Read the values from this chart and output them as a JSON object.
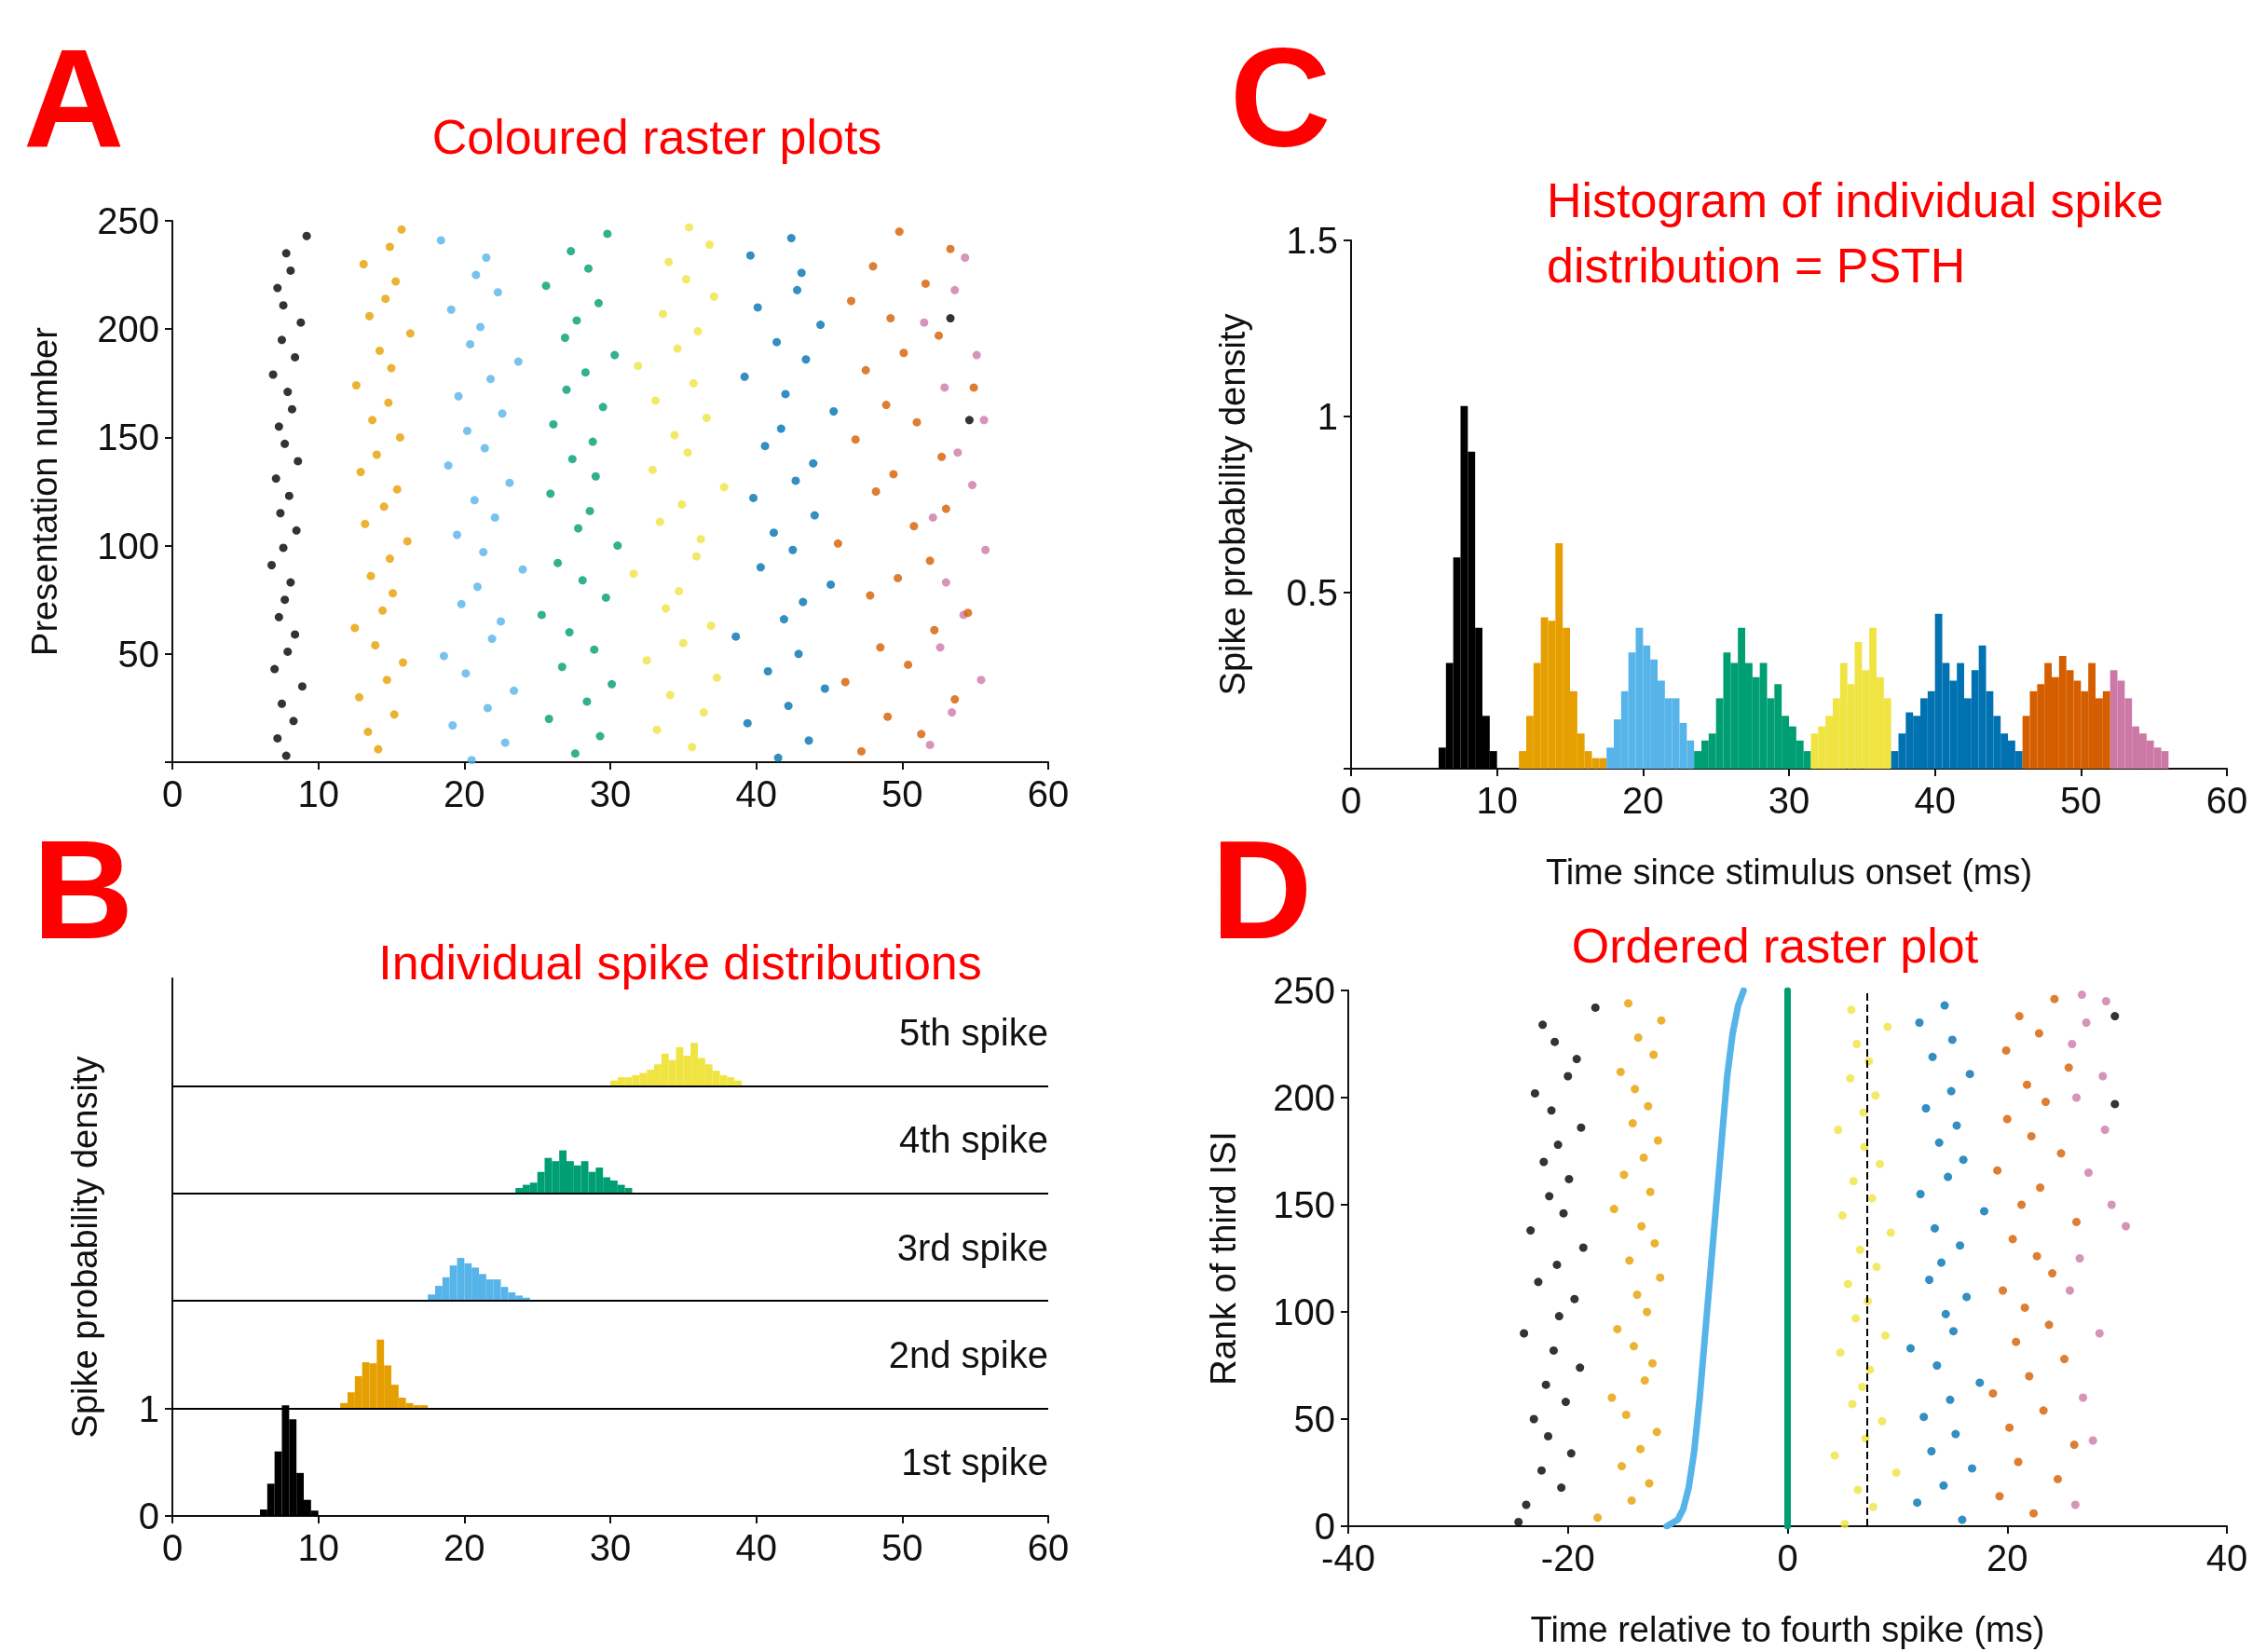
{
  "chart_data": [
    {
      "type": "scatter",
      "title": "Coloured raster plots",
      "ylabel": "Presentation number",
      "annotations": [
        "A"
      ],
      "marker": "circle",
      "xlim": [
        0,
        60
      ],
      "ylim": [
        0,
        250
      ],
      "xticks": [
        0,
        10,
        20,
        30,
        40,
        50,
        60
      ],
      "yticks": [
        {
          "value": 0,
          "label": null
        },
        50,
        100,
        150,
        200,
        250
      ],
      "series": [
        {
          "color": "#000000",
          "x": [
            7.8,
            7.2,
            8.3,
            7.5,
            8.9,
            7.0,
            7.9,
            8.4,
            7.3,
            7.7,
            8.1,
            6.8,
            7.6,
            8.5,
            7.4,
            8.0,
            7.1,
            8.6,
            7.7,
            7.3,
            8.2,
            7.9,
            6.9,
            8.4,
            7.5,
            8.8,
            7.6,
            7.2,
            8.1,
            7.8,
            9.2
          ],
          "values": [
            3,
            11,
            19,
            27,
            35,
            43,
            51,
            59,
            67,
            75,
            83,
            91,
            99,
            107,
            115,
            123,
            131,
            139,
            147,
            155,
            163,
            171,
            179,
            187,
            195,
            203,
            211,
            219,
            227,
            235,
            243
          ]
        },
        {
          "color": "#e69f00",
          "x": [
            14.1,
            13.4,
            15.2,
            12.8,
            14.7,
            15.8,
            13.9,
            12.5,
            14.4,
            15.1,
            13.6,
            14.9,
            16.1,
            13.2,
            14.5,
            15.4,
            12.9,
            14.0,
            15.6,
            13.7,
            14.8,
            12.6,
            15.0,
            14.2,
            16.3,
            13.5,
            14.6,
            15.3,
            13.1,
            14.9,
            15.7
          ],
          "values": [
            6,
            14,
            22,
            30,
            38,
            46,
            54,
            62,
            70,
            78,
            86,
            94,
            102,
            110,
            118,
            126,
            134,
            142,
            150,
            158,
            166,
            174,
            182,
            190,
            198,
            206,
            214,
            222,
            230,
            238,
            246
          ]
        },
        {
          "color": "#56b4e9",
          "x": [
            20.5,
            22.8,
            19.2,
            21.6,
            23.4,
            20.1,
            18.6,
            21.9,
            22.5,
            19.8,
            20.9,
            24.0,
            21.3,
            19.5,
            22.1,
            20.7,
            23.1,
            18.9,
            21.4,
            20.2,
            22.6,
            19.6,
            21.8,
            23.7,
            20.4,
            21.1,
            19.1,
            22.3,
            20.8,
            21.5,
            18.4
          ],
          "values": [
            1,
            9,
            17,
            25,
            33,
            41,
            49,
            57,
            65,
            73,
            81,
            89,
            97,
            105,
            113,
            121,
            129,
            137,
            145,
            153,
            161,
            169,
            177,
            185,
            193,
            201,
            209,
            217,
            225,
            233,
            241
          ]
        },
        {
          "color": "#009e73",
          "x": [
            27.6,
            29.3,
            25.8,
            28.4,
            30.1,
            26.7,
            28.9,
            27.2,
            25.3,
            29.7,
            28.1,
            26.4,
            30.5,
            27.8,
            28.6,
            25.9,
            29.0,
            27.4,
            28.8,
            26.1,
            29.5,
            27.0,
            28.3,
            30.3,
            26.9,
            27.7,
            29.2,
            25.6,
            28.5,
            27.3,
            29.8
          ],
          "values": [
            4,
            12,
            20,
            28,
            36,
            44,
            52,
            60,
            68,
            76,
            84,
            92,
            100,
            108,
            116,
            124,
            132,
            140,
            148,
            156,
            164,
            172,
            180,
            188,
            196,
            204,
            212,
            220,
            228,
            236,
            244
          ]
        },
        {
          "color": "#f0e442",
          "x": [
            35.6,
            33.2,
            36.4,
            34.1,
            37.3,
            32.5,
            35.0,
            36.9,
            33.8,
            34.7,
            31.6,
            35.9,
            36.2,
            33.4,
            34.9,
            37.8,
            32.9,
            35.3,
            34.4,
            36.6,
            33.1,
            35.7,
            31.9,
            34.6,
            36.0,
            33.6,
            37.1,
            35.2,
            34.0,
            36.8,
            35.4
          ],
          "values": [
            7,
            15,
            23,
            31,
            39,
            47,
            55,
            63,
            71,
            79,
            87,
            95,
            103,
            111,
            119,
            127,
            135,
            143,
            151,
            159,
            167,
            175,
            183,
            191,
            199,
            207,
            215,
            223,
            231,
            239,
            247
          ]
        },
        {
          "color": "#0072b2",
          "x": [
            41.5,
            43.6,
            39.4,
            42.2,
            44.7,
            40.8,
            42.9,
            38.6,
            41.9,
            43.2,
            45.1,
            40.3,
            42.5,
            41.2,
            44.0,
            39.8,
            42.7,
            43.9,
            40.6,
            41.7,
            45.3,
            42.0,
            39.2,
            43.4,
            41.4,
            44.4,
            40.1,
            42.8,
            43.1,
            39.6,
            42.4
          ],
          "values": [
            2,
            10,
            18,
            26,
            34,
            42,
            50,
            58,
            66,
            74,
            82,
            90,
            98,
            106,
            114,
            122,
            130,
            138,
            146,
            154,
            162,
            170,
            178,
            186,
            194,
            202,
            210,
            218,
            226,
            234,
            242
          ]
        },
        {
          "color": "#cc79a7",
          "x": [
            51.9,
            53.4,
            55.4,
            52.6,
            54.2,
            53.0,
            55.7,
            52.1,
            54.8,
            53.8,
            55.6,
            52.9,
            55.1,
            51.5,
            53.6,
            54.3
          ],
          "values": [
            8,
            23,
            38,
            53,
            68,
            83,
            98,
            113,
            128,
            143,
            158,
            173,
            188,
            203,
            218,
            233
          ]
        },
        {
          "color": "#d55e00",
          "x": [
            47.2,
            51.3,
            49.0,
            53.6,
            46.1,
            50.4,
            48.5,
            52.2,
            54.5,
            47.8,
            49.7,
            51.9,
            45.6,
            50.8,
            53.0,
            48.2,
            49.4,
            52.7,
            46.8,
            51.0,
            48.9,
            54.9,
            47.5,
            50.1,
            52.5,
            49.2,
            46.5,
            51.6,
            48.0,
            53.3,
            49.8
          ],
          "values": [
            5,
            13,
            21,
            29,
            37,
            45,
            53,
            61,
            69,
            77,
            85,
            93,
            101,
            109,
            117,
            125,
            133,
            141,
            149,
            157,
            165,
            173,
            181,
            189,
            197,
            205,
            213,
            221,
            229,
            237,
            245
          ]
        },
        {
          "color": "#000000",
          "x": [
            53.3,
            54.6
          ],
          "values": [
            205,
            158
          ]
        }
      ]
    },
    {
      "type": "bar",
      "title": "Individual spike distributions",
      "ylabel": "Spike probability density",
      "annotations": [
        "B"
      ],
      "xlim": [
        0,
        60
      ],
      "ylim": [
        0,
        5
      ],
      "xticks": [
        0,
        10,
        20,
        30,
        40,
        50,
        60
      ],
      "yticks": [
        0,
        1
      ],
      "ref_lines": [
        {
          "axis": "y",
          "value": 1,
          "color": "#000000"
        },
        {
          "axis": "y",
          "value": 2,
          "color": "#000000"
        },
        {
          "axis": "y",
          "value": 3,
          "color": "#000000"
        },
        {
          "axis": "y",
          "value": 4,
          "color": "#000000"
        }
      ],
      "series": [
        {
          "name": "1st spike",
          "color": "#000000",
          "x": [
            6.25,
            6.75,
            7.25,
            7.75,
            8.25,
            8.75,
            9.25,
            9.75
          ],
          "values": [
            0.06,
            0.3,
            0.6,
            1.03,
            0.9,
            0.4,
            0.15,
            0.05
          ],
          "base": [
            0,
            0,
            0,
            0,
            0,
            0,
            0,
            0
          ]
        },
        {
          "name": "2nd spike",
          "color": "#e69f00",
          "x": [
            11.75,
            12.25,
            12.75,
            13.25,
            13.75,
            14.25,
            14.75,
            15.25,
            15.75,
            16.25,
            16.75,
            17.25
          ],
          "values": [
            0.05,
            0.15,
            0.3,
            0.43,
            0.42,
            0.64,
            0.4,
            0.22,
            0.1,
            0.05,
            0.03,
            0.03
          ],
          "base": [
            1,
            1,
            1,
            1,
            1,
            1,
            1,
            1,
            1,
            1,
            1,
            1
          ]
        },
        {
          "name": "3rd spike",
          "color": "#56b4e9",
          "x": [
            17.75,
            18.25,
            18.75,
            19.25,
            19.75,
            20.25,
            20.75,
            21.25,
            21.75,
            22.25,
            22.75,
            23.25,
            23.75,
            24.25
          ],
          "values": [
            0.06,
            0.14,
            0.22,
            0.33,
            0.4,
            0.35,
            0.31,
            0.25,
            0.2,
            0.2,
            0.13,
            0.08,
            0.05,
            0.03
          ],
          "base": [
            2,
            2,
            2,
            2,
            2,
            2,
            2,
            2,
            2,
            2,
            2,
            2,
            2,
            2
          ]
        },
        {
          "name": "4th spike",
          "color": "#009e73",
          "x": [
            23.75,
            24.25,
            24.75,
            25.25,
            25.75,
            26.25,
            26.75,
            27.25,
            27.75,
            28.25,
            28.75,
            29.25,
            29.75,
            30.25,
            30.75,
            31.25
          ],
          "values": [
            0.05,
            0.08,
            0.1,
            0.2,
            0.33,
            0.3,
            0.4,
            0.3,
            0.26,
            0.3,
            0.2,
            0.24,
            0.15,
            0.12,
            0.08,
            0.05
          ],
          "base": [
            3,
            3,
            3,
            3,
            3,
            3,
            3,
            3,
            3,
            3,
            3,
            3,
            3,
            3,
            3,
            3
          ]
        },
        {
          "name": "5th spike",
          "color": "#f0e442",
          "x": [
            30.25,
            30.75,
            31.25,
            31.75,
            32.25,
            32.75,
            33.25,
            33.75,
            34.25,
            34.75,
            35.25,
            35.75,
            36.25,
            36.75,
            37.25,
            37.75,
            38.25,
            38.75
          ],
          "values": [
            0.05,
            0.08,
            0.08,
            0.1,
            0.12,
            0.15,
            0.2,
            0.3,
            0.24,
            0.36,
            0.28,
            0.4,
            0.26,
            0.2,
            0.14,
            0.1,
            0.08,
            0.05
          ],
          "base": [
            4,
            4,
            4,
            4,
            4,
            4,
            4,
            4,
            4,
            4,
            4,
            4,
            4,
            4,
            4,
            4,
            4,
            4
          ]
        }
      ]
    },
    {
      "type": "bar",
      "title": "Histogram of individual spike distribution = PSTH",
      "xlabel": "Time since stimulus onset (ms)",
      "ylabel": "Spike probability density",
      "annotations": [
        "C"
      ],
      "xlim": [
        0,
        60
      ],
      "ylim": [
        0,
        1.5
      ],
      "xticks": [
        0,
        10,
        20,
        30,
        40,
        50,
        60
      ],
      "yticks": [
        {
          "value": 0,
          "label": null
        },
        0.5,
        1,
        1.5
      ],
      "series": [
        {
          "color": "#000000",
          "x": [
            6.25,
            6.75,
            7.25,
            7.75,
            8.25,
            8.75,
            9.25,
            9.75
          ],
          "values": [
            0.06,
            0.3,
            0.6,
            1.03,
            0.9,
            0.4,
            0.15,
            0.05
          ]
        },
        {
          "color": "#e69f00",
          "x": [
            11.75,
            12.25,
            12.75,
            13.25,
            13.75,
            14.25,
            14.75,
            15.25,
            15.75,
            16.25,
            16.75,
            17.25
          ],
          "values": [
            0.05,
            0.15,
            0.3,
            0.43,
            0.42,
            0.64,
            0.4,
            0.22,
            0.1,
            0.05,
            0.03,
            0.03
          ]
        },
        {
          "color": "#56b4e9",
          "x": [
            17.75,
            18.25,
            18.75,
            19.25,
            19.75,
            20.25,
            20.75,
            21.25,
            21.75,
            22.25,
            22.75,
            23.25
          ],
          "values": [
            0.06,
            0.14,
            0.22,
            0.33,
            0.4,
            0.35,
            0.31,
            0.25,
            0.2,
            0.2,
            0.13,
            0.08
          ]
        },
        {
          "color": "#009e73",
          "x": [
            23.75,
            24.25,
            24.75,
            25.25,
            25.75,
            26.25,
            26.75,
            27.25,
            27.75,
            28.25,
            28.75,
            29.25,
            29.75,
            30.25,
            30.75,
            31.25
          ],
          "values": [
            0.05,
            0.08,
            0.1,
            0.2,
            0.33,
            0.3,
            0.4,
            0.3,
            0.26,
            0.3,
            0.2,
            0.24,
            0.15,
            0.12,
            0.08,
            0.05
          ]
        },
        {
          "color": "#f0e442",
          "x": [
            31.75,
            32.25,
            32.75,
            33.25,
            33.75,
            34.25,
            34.75,
            35.25,
            35.75,
            36.25,
            36.75
          ],
          "values": [
            0.1,
            0.12,
            0.15,
            0.2,
            0.3,
            0.24,
            0.36,
            0.28,
            0.4,
            0.26,
            0.2
          ]
        },
        {
          "color": "#0072b2",
          "x": [
            37.25,
            37.75,
            38.25,
            38.75,
            39.25,
            39.75,
            40.25,
            40.75,
            41.25,
            41.75,
            42.25,
            42.75,
            43.25,
            43.75,
            44.25,
            44.75,
            45.25,
            45.75
          ],
          "values": [
            0.05,
            0.1,
            0.16,
            0.15,
            0.2,
            0.22,
            0.44,
            0.3,
            0.25,
            0.3,
            0.2,
            0.28,
            0.35,
            0.22,
            0.15,
            0.1,
            0.08,
            0.05
          ]
        },
        {
          "color": "#cc79a7",
          "x": [
            52.25,
            52.75,
            53.25,
            53.75,
            54.25,
            54.75,
            55.25,
            55.75
          ],
          "values": [
            0.28,
            0.25,
            0.2,
            0.12,
            0.1,
            0.08,
            0.06,
            0.05
          ]
        },
        {
          "color": "#d55e00",
          "x": [
            46.25,
            46.75,
            47.25,
            47.75,
            48.25,
            48.75,
            49.25,
            49.75,
            50.25,
            50.75,
            51.25,
            51.75
          ],
          "values": [
            0.15,
            0.22,
            0.24,
            0.3,
            0.26,
            0.32,
            0.28,
            0.25,
            0.22,
            0.3,
            0.2,
            0.22
          ]
        }
      ]
    },
    {
      "type": "scatter",
      "title": "Ordered raster plot",
      "xlabel": "Time relative to fourth spike (ms)",
      "ylabel": "Rank of third ISI",
      "annotations": [
        "D"
      ],
      "marker": "circle",
      "xlim": [
        -40,
        40
      ],
      "ylim": [
        0,
        250
      ],
      "xticks": [
        -40,
        -20,
        0,
        20,
        40
      ],
      "yticks": [
        0,
        50,
        100,
        150,
        200,
        250
      ],
      "ref_lines": [
        {
          "axis": "x",
          "value": 7.2,
          "color": "#000000",
          "line_style": "dashed"
        }
      ],
      "series": [
        {
          "color": "#000000",
          "x": [
            -24.5,
            -23.8,
            -20.6,
            -22.4,
            -19.7,
            -21.8,
            -23.1,
            -20.2,
            -22.0,
            -18.9,
            -21.3,
            -24.0,
            -20.8,
            -19.4,
            -22.7,
            -21.0,
            -18.6,
            -23.4,
            -20.4,
            -21.7,
            -19.9,
            -22.2,
            -20.9,
            -18.8,
            -21.5,
            -23.0,
            -20.0,
            -19.2,
            -21.2,
            -22.3,
            -17.5
          ],
          "values": [
            2,
            10,
            18,
            26,
            34,
            42,
            50,
            58,
            66,
            74,
            82,
            90,
            98,
            106,
            114,
            122,
            130,
            138,
            146,
            154,
            162,
            170,
            178,
            186,
            194,
            202,
            210,
            218,
            226,
            234,
            242
          ]
        },
        {
          "color": "#e69f00",
          "x": [
            -17.3,
            -14.2,
            -12.6,
            -15.1,
            -13.4,
            -11.9,
            -14.7,
            -16.0,
            -13.0,
            -12.3,
            -14.0,
            -15.5,
            -12.8,
            -13.7,
            -11.6,
            -14.4,
            -12.1,
            -13.3,
            -15.8,
            -12.5,
            -14.9,
            -13.1,
            -11.8,
            -14.1,
            -12.7,
            -13.9,
            -15.2,
            -12.2,
            -13.6,
            -11.5,
            -14.5
          ],
          "values": [
            4,
            12,
            20,
            28,
            36,
            44,
            52,
            60,
            68,
            76,
            84,
            92,
            100,
            108,
            116,
            124,
            132,
            140,
            148,
            156,
            164,
            172,
            180,
            188,
            196,
            204,
            212,
            220,
            228,
            236,
            244
          ]
        },
        {
          "type": "line",
          "marker": "none",
          "color": "#56b4e9",
          "x": [
            -11,
            -10,
            -9.5,
            -9,
            -8.5,
            -8,
            -7.5,
            -7,
            -6.5,
            -6,
            -5.5,
            -5,
            -4.5,
            -4
          ],
          "values": [
            0,
            3,
            8,
            18,
            35,
            60,
            90,
            120,
            150,
            180,
            210,
            230,
            243,
            250
          ]
        },
        {
          "type": "line",
          "marker": "none",
          "color": "#009e73",
          "x": [
            0,
            0
          ],
          "values": [
            0,
            250
          ]
        },
        {
          "color": "#f0e442",
          "x": [
            5.2,
            7.8,
            6.4,
            9.9,
            4.3,
            7.1,
            8.6,
            5.9,
            6.8,
            7.5,
            4.8,
            8.9,
            6.2,
            7.3,
            5.5,
            8.1,
            6.6,
            9.4,
            5.0,
            7.7,
            6.0,
            8.4,
            7.0,
            4.6,
            6.9,
            8.0,
            5.7,
            7.4,
            6.3,
            9.1,
            5.8
          ],
          "values": [
            1,
            9,
            17,
            25,
            33,
            41,
            49,
            57,
            65,
            73,
            81,
            89,
            97,
            105,
            113,
            121,
            129,
            137,
            145,
            153,
            161,
            169,
            177,
            185,
            193,
            201,
            209,
            217,
            225,
            233,
            241
          ]
        },
        {
          "color": "#0072b2",
          "x": [
            15.9,
            11.8,
            14.2,
            16.8,
            13.1,
            15.3,
            12.4,
            14.8,
            17.5,
            13.6,
            11.2,
            15.1,
            14.4,
            16.3,
            12.9,
            14.0,
            15.7,
            13.4,
            17.9,
            12.1,
            14.6,
            16.0,
            13.8,
            15.4,
            12.6,
            14.9,
            16.6,
            13.2,
            15.0,
            12.0,
            14.3
          ],
          "values": [
            3,
            11,
            19,
            27,
            35,
            43,
            51,
            59,
            67,
            75,
            83,
            91,
            99,
            107,
            115,
            123,
            131,
            139,
            147,
            155,
            163,
            171,
            179,
            187,
            195,
            203,
            211,
            219,
            227,
            235,
            243
          ]
        },
        {
          "color": "#d55e00",
          "x": [
            22.4,
            19.3,
            24.6,
            21.0,
            26.1,
            20.2,
            23.3,
            18.7,
            22.0,
            25.2,
            20.8,
            23.8,
            21.6,
            19.6,
            24.1,
            22.7,
            20.5,
            26.3,
            21.3,
            23.0,
            19.1,
            24.9,
            22.2,
            20.0,
            23.5,
            21.8,
            25.6,
            19.9,
            22.9,
            21.1,
            24.3
          ],
          "values": [
            6,
            14,
            22,
            30,
            38,
            46,
            54,
            62,
            70,
            78,
            86,
            94,
            102,
            110,
            118,
            126,
            134,
            142,
            150,
            158,
            166,
            174,
            182,
            190,
            198,
            206,
            214,
            222,
            230,
            238,
            246
          ]
        },
        {
          "color": "#cc79a7",
          "x": [
            26.2,
            27.8,
            26.9,
            28.4,
            25.7,
            26.6,
            30.8,
            29.5,
            27.4,
            28.9,
            26.3,
            28.7,
            25.9,
            27.2,
            29.0,
            26.8
          ],
          "values": [
            10,
            40,
            60,
            90,
            110,
            125,
            140,
            150,
            165,
            185,
            200,
            210,
            225,
            235,
            245,
            248
          ]
        },
        {
          "color": "#000000",
          "x": [
            29.8,
            29.8
          ],
          "values": [
            238,
            197
          ]
        }
      ]
    }
  ]
}
